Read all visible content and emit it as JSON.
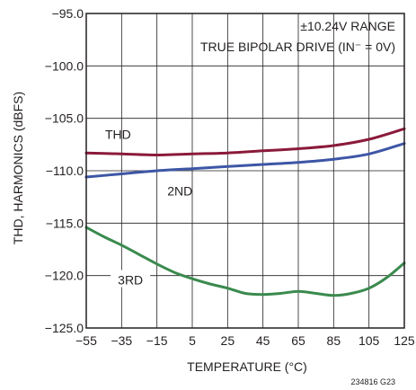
{
  "chart_data": {
    "type": "line",
    "xlabel": "TEMPERATURE (°C)",
    "ylabel": "THD, HARMONICS (dBFS)",
    "xlim": [
      -55,
      125
    ],
    "ylim": [
      -125,
      -95
    ],
    "x_ticks": [
      "−55",
      "−35",
      "−15",
      "5",
      "25",
      "45",
      "65",
      "85",
      "105",
      "125"
    ],
    "y_ticks": [
      "−95.0",
      "−100.0",
      "−105.0",
      "−110.0",
      "−115.0",
      "−120.0",
      "−125.0"
    ],
    "grid": true,
    "annotations": [
      "±10.24V RANGE",
      "TRUE BIPOLAR DRIVE (IN⁻ = 0V)"
    ],
    "figure_id": "234816 G23",
    "series": [
      {
        "name": "THD",
        "color": "#8b1a3a",
        "x": [
          -55,
          -35,
          -15,
          5,
          25,
          45,
          65,
          85,
          105,
          125
        ],
        "values": [
          -108.3,
          -108.4,
          -108.5,
          -108.4,
          -108.3,
          -108.1,
          -107.9,
          -107.6,
          -107.0,
          -106.0
        ]
      },
      {
        "name": "2ND",
        "color": "#3d56a6",
        "x": [
          -55,
          -35,
          -15,
          5,
          25,
          45,
          65,
          85,
          105,
          125
        ],
        "values": [
          -110.6,
          -110.3,
          -110.0,
          -109.8,
          -109.6,
          -109.4,
          -109.2,
          -108.9,
          -108.4,
          -107.4
        ]
      },
      {
        "name": "3RD",
        "color": "#3a8a4e",
        "x": [
          -55,
          -45,
          -35,
          -25,
          -15,
          -5,
          5,
          15,
          25,
          35,
          45,
          55,
          65,
          75,
          85,
          95,
          105,
          115,
          125
        ],
        "values": [
          -115.4,
          -116.3,
          -117.1,
          -118.0,
          -118.9,
          -119.7,
          -120.3,
          -120.8,
          -121.2,
          -121.7,
          -121.8,
          -121.7,
          -121.5,
          -121.7,
          -121.9,
          -121.7,
          -121.2,
          -120.2,
          -118.8
        ]
      }
    ]
  }
}
